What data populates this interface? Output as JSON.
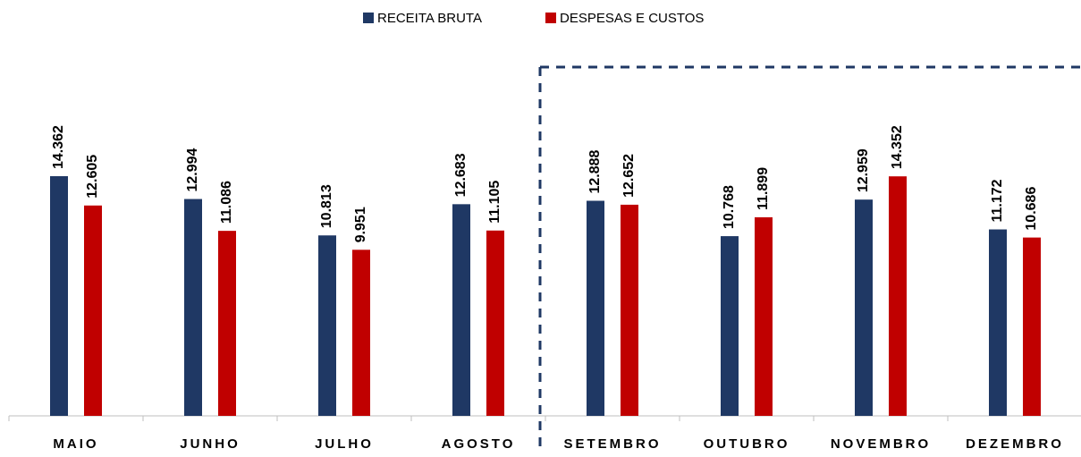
{
  "chart_data": {
    "type": "bar",
    "categories": [
      "MAIO",
      "JUNHO",
      "JULHO",
      "AGOSTO",
      "SETEMBRO",
      "OUTUBRO",
      "NOVEMBRO",
      "DEZEMBRO"
    ],
    "series": [
      {
        "name": "RECEITA BRUTA",
        "color": "#1f3864",
        "values": [
          14362,
          12994,
          10813,
          12683,
          12888,
          10768,
          12959,
          11172
        ],
        "value_labels": [
          "14.362",
          "12.994",
          "10.813",
          "12.683",
          "12.888",
          "10.768",
          "12.959",
          "11.172"
        ]
      },
      {
        "name": "DESPESAS E CUSTOS",
        "color": "#c00000",
        "values": [
          12605,
          11086,
          9951,
          11105,
          12652,
          11899,
          14352,
          10686
        ],
        "value_labels": [
          "12.605",
          "11.086",
          "9.951",
          "11.105",
          "12.652",
          "11.899",
          "14.352",
          "10.686"
        ]
      }
    ],
    "legend": "top"
  }
}
